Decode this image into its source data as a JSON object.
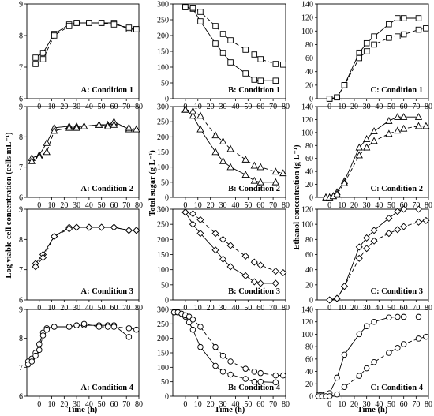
{
  "ylabels": {
    "A": "Log viable cell concentration (cells mL⁻¹)",
    "B": "Total sugar (g L⁻¹)",
    "C": "Ethanol concentration (g L⁻¹)"
  },
  "xlabel": "Time (h)",
  "chart_data": [
    {
      "type": "line",
      "id": "A1",
      "label": "A: Condition 1",
      "marker": "square",
      "ylim": [
        6,
        9
      ],
      "yticks": [
        6,
        7,
        8,
        9
      ],
      "xlim": [
        -10,
        80
      ],
      "xticks": [
        0,
        10,
        20,
        30,
        40,
        50,
        60,
        70,
        80
      ],
      "series": [
        {
          "style": "solid",
          "x": [
            -3,
            3,
            12,
            24,
            30,
            40,
            50,
            60,
            72,
            78
          ],
          "y": [
            7.3,
            7.45,
            8.05,
            8.35,
            8.4,
            8.4,
            8.4,
            8.4,
            8.2,
            8.2
          ]
        },
        {
          "style": "dashed",
          "x": [
            -3,
            3,
            12,
            24,
            30,
            40,
            50,
            60,
            72,
            78
          ],
          "y": [
            7.1,
            7.25,
            8.0,
            8.3,
            8.4,
            8.4,
            8.4,
            8.35,
            8.25,
            8.2
          ]
        }
      ]
    },
    {
      "type": "line",
      "id": "B1",
      "label": "B: Condition 1",
      "marker": "square",
      "ylim": [
        0,
        300
      ],
      "yticks": [
        0,
        50,
        100,
        150,
        200,
        250,
        300
      ],
      "xlim": [
        -10,
        80
      ],
      "xticks": [
        0,
        10,
        20,
        30,
        40,
        50,
        60,
        70,
        80
      ],
      "series": [
        {
          "style": "solid",
          "x": [
            0,
            6,
            12,
            24,
            30,
            36,
            48,
            55,
            60,
            72
          ],
          "y": [
            290,
            285,
            245,
            175,
            145,
            115,
            80,
            60,
            57,
            57
          ]
        },
        {
          "style": "dashed",
          "x": [
            0,
            6,
            12,
            24,
            30,
            36,
            48,
            55,
            60,
            72,
            78
          ],
          "y": [
            290,
            288,
            275,
            230,
            205,
            185,
            155,
            140,
            125,
            110,
            108
          ]
        }
      ]
    },
    {
      "type": "line",
      "id": "C1",
      "label": "C: Condition 1",
      "marker": "square",
      "ylim": [
        0,
        140
      ],
      "yticks": [
        0,
        20,
        40,
        60,
        80,
        100,
        120,
        140
      ],
      "xlim": [
        -10,
        80
      ],
      "xticks": [
        0,
        10,
        20,
        30,
        40,
        50,
        60,
        70,
        80
      ],
      "series": [
        {
          "style": "solid",
          "x": [
            0,
            6,
            12,
            24,
            30,
            36,
            48,
            55,
            60,
            72
          ],
          "y": [
            0,
            2,
            20,
            68,
            82,
            92,
            110,
            119,
            119,
            119
          ]
        },
        {
          "style": "dashed",
          "x": [
            0,
            6,
            12,
            24,
            30,
            36,
            48,
            55,
            60,
            72,
            78
          ],
          "y": [
            0,
            2,
            20,
            60,
            70,
            80,
            90,
            92,
            95,
            102,
            104
          ]
        }
      ]
    },
    {
      "type": "line",
      "id": "A2",
      "label": "A: Condition 2",
      "marker": "triangle",
      "ylim": [
        6,
        9
      ],
      "yticks": [
        6,
        7,
        8,
        9
      ],
      "xlim": [
        -10,
        80
      ],
      "xticks": [
        0,
        10,
        20,
        30,
        40,
        50,
        60,
        70,
        80
      ],
      "series": [
        {
          "style": "solid",
          "x": [
            -6,
            0,
            6,
            12,
            24,
            30,
            36,
            48,
            55,
            60,
            72,
            78
          ],
          "y": [
            7.3,
            7.4,
            7.8,
            8.3,
            8.35,
            8.35,
            8.35,
            8.4,
            8.4,
            8.5,
            8.25,
            8.25
          ]
        },
        {
          "style": "dashed",
          "x": [
            -6,
            0,
            6,
            12,
            24,
            30,
            36,
            48,
            55,
            60,
            72,
            78
          ],
          "y": [
            7.2,
            7.35,
            7.5,
            8.2,
            8.3,
            8.3,
            8.35,
            8.4,
            8.35,
            8.4,
            8.3,
            8.25
          ]
        }
      ]
    },
    {
      "type": "line",
      "id": "B2",
      "label": "B: Condition 2",
      "marker": "triangle",
      "ylim": [
        0,
        300
      ],
      "yticks": [
        0,
        50,
        100,
        150,
        200,
        250,
        300
      ],
      "xlim": [
        -10,
        80
      ],
      "xticks": [
        0,
        10,
        20,
        30,
        40,
        50,
        60,
        70,
        80
      ],
      "series": [
        {
          "style": "solid",
          "x": [
            0,
            6,
            12,
            24,
            30,
            36,
            48,
            55,
            60,
            72
          ],
          "y": [
            290,
            270,
            225,
            150,
            120,
            100,
            75,
            55,
            50,
            50
          ]
        },
        {
          "style": "dashed",
          "x": [
            0,
            6,
            12,
            24,
            30,
            36,
            48,
            55,
            60,
            72,
            78
          ],
          "y": [
            290,
            285,
            270,
            205,
            185,
            160,
            125,
            105,
            100,
            85,
            80
          ]
        }
      ]
    },
    {
      "type": "line",
      "id": "C2",
      "label": "C: Condition 2",
      "marker": "triangle",
      "ylim": [
        0,
        140
      ],
      "yticks": [
        0,
        20,
        40,
        60,
        80,
        100,
        120,
        140
      ],
      "xlim": [
        -10,
        80
      ],
      "xticks": [
        0,
        10,
        20,
        30,
        40,
        50,
        60,
        70,
        80
      ],
      "series": [
        {
          "style": "solid",
          "x": [
            -3,
            0,
            3,
            6,
            12,
            24,
            30,
            36,
            48,
            55,
            60,
            72
          ],
          "y": [
            0,
            0,
            2,
            8,
            25,
            77,
            90,
            102,
            118,
            124,
            124,
            124
          ]
        },
        {
          "style": "dashed",
          "x": [
            -3,
            0,
            3,
            6,
            12,
            24,
            30,
            36,
            48,
            55,
            60,
            72,
            78
          ],
          "y": [
            0,
            0,
            2,
            5,
            22,
            65,
            77,
            87,
            98,
            103,
            106,
            110,
            110
          ]
        }
      ]
    },
    {
      "type": "line",
      "id": "A3",
      "label": "A: Condition 3",
      "marker": "diamond",
      "ylim": [
        6,
        9
      ],
      "yticks": [
        6,
        7,
        8,
        9
      ],
      "xlim": [
        -10,
        80
      ],
      "xticks": [
        0,
        10,
        20,
        30,
        40,
        50,
        60,
        70,
        80
      ],
      "series": [
        {
          "style": "solid",
          "x": [
            -3,
            3,
            12,
            24,
            30,
            40,
            50,
            60,
            72,
            78
          ],
          "y": [
            7.2,
            7.5,
            8.1,
            8.4,
            8.4,
            8.4,
            8.4,
            8.4,
            8.3,
            8.3
          ]
        },
        {
          "style": "dashed",
          "x": [
            -3,
            3,
            12,
            24,
            30,
            40,
            50,
            60,
            72,
            78
          ],
          "y": [
            7.1,
            7.4,
            8.1,
            8.35,
            8.4,
            8.4,
            8.4,
            8.4,
            8.3,
            8.3
          ]
        }
      ]
    },
    {
      "type": "line",
      "id": "B3",
      "label": "B: Condition 3",
      "marker": "diamond",
      "ylim": [
        0,
        300
      ],
      "yticks": [
        0,
        50,
        100,
        150,
        200,
        250,
        300
      ],
      "xlim": [
        -10,
        80
      ],
      "xticks": [
        0,
        10,
        20,
        30,
        40,
        50,
        60,
        70,
        80
      ],
      "series": [
        {
          "style": "solid",
          "x": [
            0,
            6,
            12,
            24,
            30,
            36,
            48,
            55,
            60,
            72
          ],
          "y": [
            290,
            250,
            220,
            165,
            135,
            110,
            80,
            60,
            55,
            55
          ]
        },
        {
          "style": "dashed",
          "x": [
            0,
            6,
            12,
            24,
            30,
            36,
            48,
            55,
            60,
            72,
            78
          ],
          "y": [
            290,
            285,
            265,
            220,
            200,
            180,
            145,
            125,
            115,
            95,
            90
          ]
        }
      ]
    },
    {
      "type": "line",
      "id": "C3",
      "label": "C: Condition 3",
      "marker": "diamond",
      "ylim": [
        0,
        120
      ],
      "yticks": [
        0,
        20,
        40,
        60,
        80,
        100,
        120
      ],
      "xlim": [
        -10,
        80
      ],
      "xticks": [
        0,
        10,
        20,
        30,
        40,
        50,
        60,
        70,
        80
      ],
      "series": [
        {
          "style": "solid",
          "x": [
            0,
            6,
            12,
            24,
            30,
            36,
            48,
            55,
            60,
            72
          ],
          "y": [
            0,
            2,
            18,
            70,
            82,
            92,
            108,
            117,
            120,
            120
          ]
        },
        {
          "style": "dashed",
          "x": [
            0,
            6,
            12,
            24,
            30,
            36,
            48,
            55,
            60,
            72,
            78
          ],
          "y": [
            0,
            2,
            18,
            55,
            68,
            78,
            88,
            93,
            97,
            103,
            105
          ]
        }
      ]
    },
    {
      "type": "line",
      "id": "A4",
      "label": "A: Condition 4",
      "marker": "circle",
      "ylim": [
        6,
        9
      ],
      "yticks": [
        6,
        7,
        8,
        9
      ],
      "xlim": [
        -10,
        80
      ],
      "xticks": [
        0,
        10,
        20,
        30,
        40,
        50,
        60,
        70,
        80
      ],
      "series": [
        {
          "style": "solid",
          "x": [
            -9,
            -6,
            -3,
            0,
            3,
            6,
            12,
            24,
            30,
            36,
            48,
            55,
            60,
            72
          ],
          "y": [
            7.2,
            7.3,
            7.5,
            7.8,
            8.2,
            8.35,
            8.4,
            8.4,
            8.45,
            8.45,
            8.45,
            8.45,
            8.45,
            8.05
          ]
        },
        {
          "style": "dashed",
          "x": [
            -9,
            -6,
            -3,
            0,
            3,
            6,
            12,
            24,
            30,
            36,
            48,
            55,
            60,
            72,
            78
          ],
          "y": [
            7.1,
            7.2,
            7.4,
            7.6,
            8.1,
            8.3,
            8.4,
            8.4,
            8.45,
            8.5,
            8.4,
            8.4,
            8.4,
            8.35,
            8.3
          ]
        }
      ]
    },
    {
      "type": "line",
      "id": "B4",
      "label": "B: Condition 4",
      "marker": "circle",
      "ylim": [
        0,
        300
      ],
      "yticks": [
        0,
        50,
        100,
        150,
        200,
        250,
        300
      ],
      "xlim": [
        -10,
        80
      ],
      "xticks": [
        0,
        10,
        20,
        30,
        40,
        50,
        60,
        70,
        80
      ],
      "series": [
        {
          "style": "solid",
          "x": [
            -9,
            -6,
            -3,
            0,
            3,
            6,
            12,
            24,
            30,
            36,
            48,
            55,
            60,
            72
          ],
          "y": [
            290,
            290,
            285,
            275,
            255,
            230,
            170,
            105,
            85,
            75,
            60,
            50,
            50,
            48
          ]
        },
        {
          "style": "dashed",
          "x": [
            -9,
            -6,
            -3,
            0,
            3,
            6,
            12,
            24,
            30,
            36,
            48,
            55,
            60,
            72,
            78
          ],
          "y": [
            290,
            290,
            285,
            280,
            275,
            265,
            240,
            170,
            140,
            120,
            95,
            85,
            80,
            72,
            72
          ]
        }
      ]
    },
    {
      "type": "line",
      "id": "C4",
      "label": "C: Condition 4",
      "marker": "circle",
      "ylim": [
        0,
        140
      ],
      "yticks": [
        0,
        20,
        40,
        60,
        80,
        100,
        120,
        140
      ],
      "xlim": [
        -10,
        80
      ],
      "xticks": [
        0,
        10,
        20,
        30,
        40,
        50,
        60,
        70,
        80
      ],
      "series": [
        {
          "style": "solid",
          "x": [
            -9,
            -6,
            -3,
            0,
            6,
            12,
            24,
            30,
            36,
            48,
            55,
            60,
            72
          ],
          "y": [
            2,
            2,
            3,
            5,
            30,
            67,
            100,
            113,
            120,
            127,
            128,
            128,
            128
          ]
        },
        {
          "style": "dashed",
          "x": [
            -9,
            -6,
            -3,
            0,
            6,
            12,
            24,
            30,
            36,
            48,
            55,
            60,
            72,
            78
          ],
          "y": [
            0,
            0,
            0,
            0,
            3,
            15,
            33,
            45,
            55,
            70,
            78,
            84,
            93,
            96
          ]
        }
      ]
    }
  ]
}
